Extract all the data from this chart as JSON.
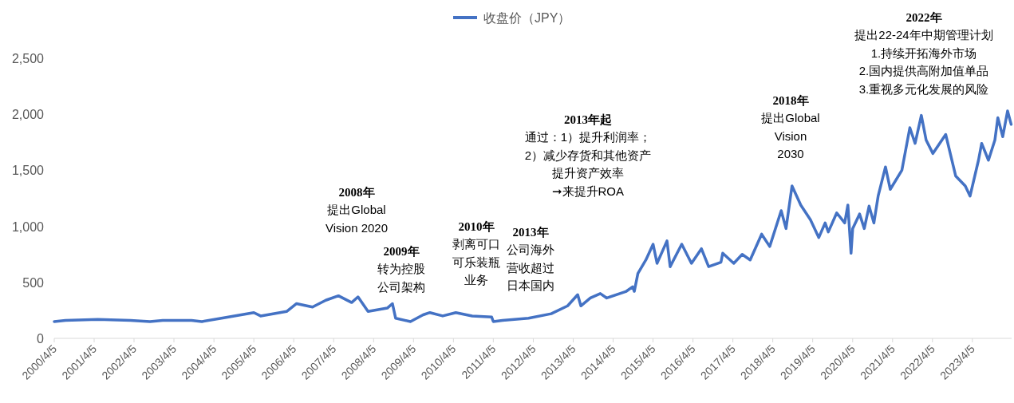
{
  "chart_data": {
    "type": "line",
    "legend": "top",
    "grid": false,
    "xlim": [
      "2000-04-05",
      "2024-03-29"
    ],
    "xticks": [
      {
        "value": "2000-04-05",
        "label": "2000/4/5"
      },
      {
        "value": "2001-04-05",
        "label": "2001/4/5"
      },
      {
        "value": "2002-04-05",
        "label": "2002/4/5"
      },
      {
        "value": "2003-04-05",
        "label": "2003/4/5"
      },
      {
        "value": "2004-04-05",
        "label": "2004/4/5"
      },
      {
        "value": "2005-04-05",
        "label": "2005/4/5"
      },
      {
        "value": "2006-04-05",
        "label": "2006/4/5"
      },
      {
        "value": "2007-04-05",
        "label": "2007/4/5"
      },
      {
        "value": "2008-04-05",
        "label": "2008/4/5"
      },
      {
        "value": "2009-04-05",
        "label": "2009/4/5"
      },
      {
        "value": "2010-04-05",
        "label": "2010/4/5"
      },
      {
        "value": "2011-04-05",
        "label": "2011/4/5"
      },
      {
        "value": "2012-04-05",
        "label": "2012/4/5"
      },
      {
        "value": "2013-04-05",
        "label": "2013/4/5"
      },
      {
        "value": "2014-04-05",
        "label": "2014/4/5"
      },
      {
        "value": "2015-04-05",
        "label": "2015/4/5"
      },
      {
        "value": "2016-04-05",
        "label": "2016/4/5"
      },
      {
        "value": "2017-04-05",
        "label": "2017/4/5"
      },
      {
        "value": "2018-04-05",
        "label": "2018/4/5"
      },
      {
        "value": "2019-04-05",
        "label": "2019/4/5"
      },
      {
        "value": "2020-04-05",
        "label": "2020/4/5"
      },
      {
        "value": "2021-04-05",
        "label": "2021/4/5"
      },
      {
        "value": "2022-04-05",
        "label": "2022/4/5"
      },
      {
        "value": "2023-04-05",
        "label": "2023/4/5"
      }
    ],
    "ylim": [
      0,
      2500
    ],
    "yticks": [
      0,
      500,
      {
        "value": 1000,
        "label": "1,000"
      },
      {
        "value": 1500,
        "label": "1,500"
      },
      {
        "value": 2000,
        "label": "2,000"
      },
      {
        "value": 2500,
        "label": "2,500"
      }
    ],
    "series": [
      {
        "name": "收盘价（JPY）",
        "color": "#4472c4",
        "x": [
          "2000-04-05",
          "2000-07-16",
          "2001-05-08",
          "2002-03-04",
          "2002-08-29",
          "2002-12-24",
          "2003-09-13",
          "2003-12-16",
          "2004-06-13",
          "2005-04-05",
          "2005-06-06",
          "2006-01-30",
          "2006-05-01",
          "2006-09-24",
          "2007-01-23",
          "2007-05-19",
          "2007-09-17",
          "2007-11-14",
          "2008-02-14",
          "2008-08-08",
          "2008-09-24",
          "2008-10-23",
          "2009-03-08",
          "2009-07-02",
          "2009-09-02",
          "2009-12-28",
          "2010-04-27",
          "2010-09-24",
          "2011-03-21",
          "2011-04-05",
          "2011-06-28",
          "2012-02-21",
          "2012-09-16",
          "2013-02-13",
          "2013-05-16",
          "2013-06-14",
          "2013-09-09",
          "2013-12-09",
          "2014-02-06",
          "2014-08-04",
          "2014-10-01",
          "2014-10-16",
          "2014-11-18",
          "2015-01-30",
          "2015-04-06",
          "2015-05-12",
          "2015-08-11",
          "2015-09-09",
          "2015-12-24",
          "2016-03-22",
          "2016-06-21",
          "2016-08-26",
          "2016-12-17",
          "2017-01-02",
          "2017-04-13",
          "2017-06-29",
          "2017-09-10",
          "2017-12-24",
          "2018-03-08",
          "2018-06-21",
          "2018-08-04",
          "2018-09-28",
          "2018-12-17",
          "2019-03-15",
          "2019-05-31",
          "2019-07-28",
          "2019-08-26",
          "2019-11-11",
          "2020-01-23",
          "2020-02-21",
          "2020-03-21",
          "2020-04-05",
          "2020-06-07",
          "2020-07-20",
          "2020-09-02",
          "2020-10-16",
          "2020-11-24",
          "2021-01-30",
          "2021-03-15",
          "2021-06-29",
          "2021-09-10",
          "2021-10-28",
          "2021-12-24",
          "2022-02-06",
          "2022-04-09",
          "2022-08-04",
          "2022-11-03",
          "2023-01-30",
          "2023-03-15",
          "2023-05-31",
          "2023-06-29",
          "2023-08-30",
          "2023-10-28",
          "2023-11-24",
          "2024-01-08",
          "2024-02-21",
          "2024-03-25"
        ],
        "values": [
          150,
          160,
          170,
          160,
          150,
          160,
          160,
          150,
          180,
          230,
          200,
          240,
          310,
          280,
          340,
          380,
          320,
          370,
          240,
          270,
          310,
          180,
          150,
          210,
          230,
          200,
          230,
          200,
          190,
          150,
          160,
          180,
          220,
          290,
          390,
          290,
          360,
          400,
          360,
          420,
          460,
          420,
          580,
          700,
          840,
          670,
          870,
          640,
          840,
          670,
          800,
          640,
          680,
          760,
          670,
          750,
          700,
          930,
          820,
          1140,
          980,
          1360,
          1190,
          1060,
          900,
          1030,
          950,
          1120,
          1030,
          1190,
          760,
          980,
          1110,
          980,
          1180,
          1030,
          1270,
          1530,
          1330,
          1500,
          1880,
          1740,
          1990,
          1770,
          1650,
          1820,
          1450,
          1360,
          1270,
          1590,
          1740,
          1590,
          1770,
          1970,
          1800,
          2030,
          1910
        ]
      }
    ],
    "annotations": [
      "2008年",
      "提出Global Vision 2020",
      "2009年",
      "转为控股公司架构",
      "2010年",
      "剥离可口可乐装瓶业务",
      "2013年",
      "公司海外营收超过日本国内",
      "2013年起",
      "通过：1）提升利润率；2）减少存货和其他资产提升资产效率➞来提升ROA",
      "2018年",
      "提出Global Vision 2030",
      "2022年",
      "提出22-24年中期管理计划1.持续开拓海外市场2.国内提供高附加值单品3.重视多元化发展的风险"
    ]
  }
}
